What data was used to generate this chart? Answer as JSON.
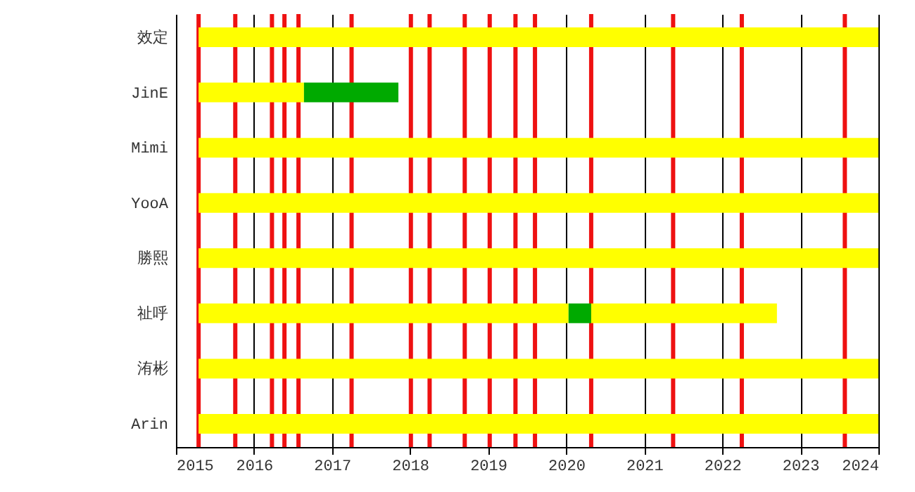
{
  "chart_data": {
    "type": "bar",
    "orientation": "horizontal",
    "categories": [
      "效定",
      "JinE",
      "Mimi",
      "YooA",
      "勝熙",
      "祉呼",
      "洧彬",
      "Arin"
    ],
    "series": [
      {
        "color": "#ffff00",
        "base": [
          2015.29,
          2015.29,
          2015.29,
          2015.29,
          2015.29,
          2015.29,
          2015.29,
          2015.29
        ],
        "values": [
          8.71,
          1.35,
          8.71,
          8.71,
          8.71,
          4.74,
          8.71,
          8.71
        ]
      },
      {
        "color": "#00aa00",
        "base": [
          null,
          2016.64,
          null,
          null,
          null,
          2020.03,
          null,
          null
        ],
        "values": [
          null,
          1.21,
          null,
          null,
          null,
          0.29,
          null,
          null
        ]
      },
      {
        "color": "#ffff00",
        "base": [
          null,
          null,
          null,
          null,
          null,
          2020.32,
          null,
          null
        ],
        "values": [
          null,
          null,
          null,
          null,
          null,
          2.38,
          null,
          null
        ]
      }
    ],
    "xlim": [
      2015,
      2024
    ],
    "xticks": [
      2015,
      2016,
      2017,
      2018,
      2019,
      2020,
      2021,
      2022,
      2023,
      2024
    ],
    "grid": "x",
    "ref_lines": [
      {
        "axis": "x",
        "value": 2015.29,
        "color": "#ee1111"
      },
      {
        "axis": "x",
        "value": 2015.76,
        "color": "#ee1111"
      },
      {
        "axis": "x",
        "value": 2016.23,
        "color": "#ee1111"
      },
      {
        "axis": "x",
        "value": 2016.39,
        "color": "#ee1111"
      },
      {
        "axis": "x",
        "value": 2016.57,
        "color": "#ee1111"
      },
      {
        "axis": "x",
        "value": 2017.25,
        "color": "#ee1111"
      },
      {
        "axis": "x",
        "value": 2018.01,
        "color": "#ee1111"
      },
      {
        "axis": "x",
        "value": 2018.25,
        "color": "#ee1111"
      },
      {
        "axis": "x",
        "value": 2018.7,
        "color": "#ee1111"
      },
      {
        "axis": "x",
        "value": 2019.02,
        "color": "#ee1111"
      },
      {
        "axis": "x",
        "value": 2019.35,
        "color": "#ee1111"
      },
      {
        "axis": "x",
        "value": 2019.6,
        "color": "#ee1111"
      },
      {
        "axis": "x",
        "value": 2020.32,
        "color": "#ee1111"
      },
      {
        "axis": "x",
        "value": 2021.37,
        "color": "#ee1111"
      },
      {
        "axis": "x",
        "value": 2022.25,
        "color": "#ee1111"
      },
      {
        "axis": "x",
        "value": 2023.57,
        "color": "#ee1111"
      }
    ]
  }
}
